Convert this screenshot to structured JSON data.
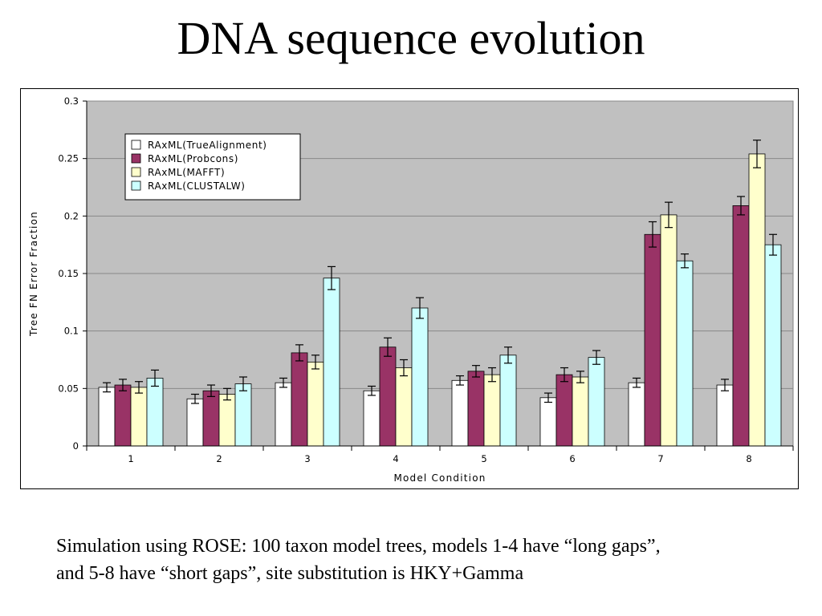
{
  "slide": {
    "title": "DNA sequence evolution",
    "caption_line1": "Simulation using ROSE: 100 taxon model trees, models 1-4 have “long gaps”,",
    "caption_line2": "and 5-8 have “short gaps”, site substitution is HKY+Gamma"
  },
  "chart_data": {
    "type": "bar",
    "title": "",
    "xlabel": "Model Condition",
    "ylabel": "Tree FN Error Fraction",
    "ylim": [
      0,
      0.3
    ],
    "yticks": [
      "0",
      "0.05",
      "0.1",
      "0.15",
      "0.2",
      "0.25",
      "0.3"
    ],
    "grid": true,
    "legend_position": "top-left",
    "categories": [
      "1",
      "2",
      "3",
      "4",
      "5",
      "6",
      "7",
      "8"
    ],
    "series": [
      {
        "name": "RAxML(TrueAlignment)",
        "color": "#ffffff",
        "values": [
          0.051,
          0.041,
          0.055,
          0.048,
          0.057,
          0.042,
          0.055,
          0.053
        ],
        "error": [
          0.004,
          0.004,
          0.004,
          0.004,
          0.004,
          0.004,
          0.004,
          0.005
        ]
      },
      {
        "name": "RAxML(Probcons)",
        "color": "#993366",
        "values": [
          0.053,
          0.048,
          0.081,
          0.086,
          0.065,
          0.062,
          0.184,
          0.209
        ],
        "error": [
          0.005,
          0.005,
          0.007,
          0.008,
          0.005,
          0.006,
          0.011,
          0.008
        ]
      },
      {
        "name": "RAxML(MAFFT)",
        "color": "#ffffcc",
        "values": [
          0.051,
          0.045,
          0.073,
          0.068,
          0.062,
          0.06,
          0.201,
          0.254
        ],
        "error": [
          0.005,
          0.005,
          0.006,
          0.007,
          0.006,
          0.005,
          0.011,
          0.012
        ]
      },
      {
        "name": "RAxML(CLUSTALW)",
        "color": "#ccffff",
        "values": [
          0.059,
          0.054,
          0.146,
          0.12,
          0.079,
          0.077,
          0.161,
          0.175
        ],
        "error": [
          0.007,
          0.006,
          0.01,
          0.009,
          0.007,
          0.006,
          0.006,
          0.009
        ]
      }
    ],
    "colors": {
      "plot_background": "#c0c0c0",
      "gridline": "#888888",
      "bar_outline": "#000000"
    }
  }
}
